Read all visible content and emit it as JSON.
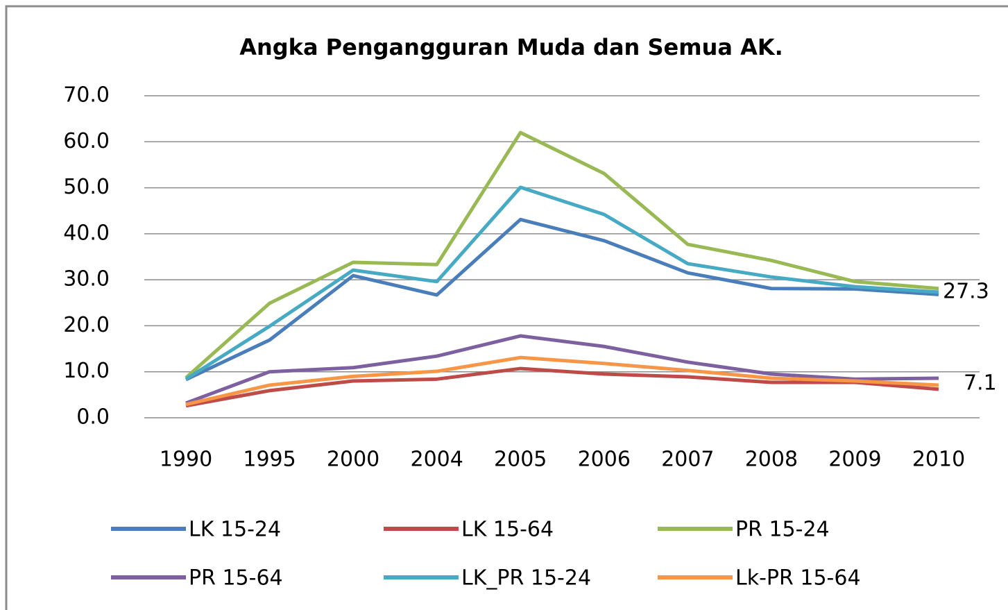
{
  "chart_data": {
    "type": "line",
    "title": "Angka Pengangguran Muda dan Semua AK.",
    "categories": [
      "1990",
      "1995",
      "2000",
      "2004",
      "2005",
      "2006",
      "2007",
      "2008",
      "2009",
      "2010"
    ],
    "series": [
      {
        "name": "LK 15-24",
        "color": "#4a7ebb",
        "values": [
          8.3,
          16.9,
          30.9,
          26.7,
          43.1,
          38.5,
          31.5,
          28.1,
          28.0,
          26.8
        ]
      },
      {
        "name": "LK 15-64",
        "color": "#be4b48",
        "values": [
          2.6,
          5.9,
          8.0,
          8.4,
          10.7,
          9.5,
          8.9,
          7.7,
          7.7,
          6.2
        ]
      },
      {
        "name": "PR 15-24",
        "color": "#98b954",
        "values": [
          8.7,
          24.9,
          33.8,
          33.3,
          62.0,
          53.1,
          37.7,
          34.2,
          29.6,
          28.1
        ]
      },
      {
        "name": "PR 15-64",
        "color": "#7d60a0",
        "values": [
          3.2,
          10.0,
          10.9,
          13.4,
          17.8,
          15.5,
          12.1,
          9.5,
          8.4,
          8.6
        ]
      },
      {
        "name": "LK_PR 15-24",
        "color": "#46aac5",
        "values": [
          8.4,
          19.9,
          32.1,
          29.6,
          50.1,
          44.2,
          33.5,
          30.6,
          28.5,
          27.3
        ],
        "value_labels": [
          null,
          null,
          null,
          null,
          null,
          null,
          null,
          null,
          null,
          "27.3"
        ]
      },
      {
        "name": "Lk-PR 15-64",
        "color": "#f79646",
        "values": [
          2.9,
          7.1,
          9.0,
          10.1,
          13.1,
          11.8,
          10.3,
          8.6,
          8.0,
          7.1
        ],
        "value_labels": [
          null,
          null,
          null,
          null,
          null,
          null,
          null,
          null,
          null,
          "7.1"
        ]
      }
    ],
    "ylim": [
      0,
      70
    ],
    "yticks": [
      {
        "value": 0,
        "label": "0.0"
      },
      {
        "value": 10,
        "label": "10.0"
      },
      {
        "value": 20,
        "label": "20.0"
      },
      {
        "value": 30,
        "label": "30.0"
      },
      {
        "value": 40,
        "label": "40.0"
      },
      {
        "value": 50,
        "label": "50.0"
      },
      {
        "value": 60,
        "label": "60.0"
      },
      {
        "value": 70,
        "label": "70.0"
      }
    ],
    "grid": true,
    "legend": "bottom"
  }
}
